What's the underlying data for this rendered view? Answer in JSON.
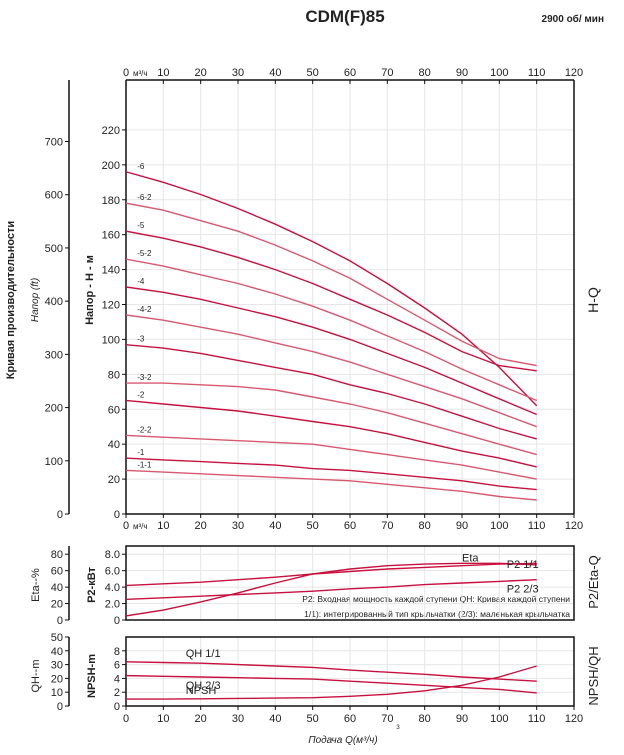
{
  "header": {
    "title": "CDM(F)85",
    "speed": "2900 об/ мин"
  },
  "colors": {
    "curve": "#c8103e",
    "curve_light": "#d9586f",
    "grid": "#e6e6e6",
    "axis": "#111111"
  },
  "labels": {
    "left_vertical": "Кривая производительности",
    "ft_axis": "Напор (ft)",
    "head_axis": "Напор - Н - м",
    "eta_axis": "Eta--%",
    "p2_axis": "P2-кВт",
    "qh_axis": "QH--m",
    "npsh_axis": "NPSH-m",
    "right_hq": "H-Q",
    "right_p2eta": "P2/Eta-Q",
    "right_npsh": "NPSH/QH",
    "unit_top": "м³/ч",
    "x_title": "Подача Q(м³/ч)",
    "x_title_unit_mark": "3",
    "note_line1": "P2: Входная мощность каждой ступени QH: Кривая каждой ступени",
    "note_line2": "1/1): интегрированный тип крыльчатки    (2/3): маленькая крыльчатка"
  },
  "chart_data": [
    {
      "id": "hq",
      "type": "line",
      "title": "H-Q",
      "xlabel": "м³/ч",
      "ylabel": "Напор - Н - м",
      "secondary_ylabel": "Напор (ft)",
      "xlim": [
        0,
        120
      ],
      "ylim": [
        0,
        240
      ],
      "x_ticks": [
        "0",
        "10",
        "20",
        "30",
        "40",
        "50",
        "60",
        "70",
        "80",
        "90",
        "100",
        "110",
        "120"
      ],
      "y_ticks": [
        "0",
        "20",
        "40",
        "60",
        "80",
        "100",
        "120",
        "140",
        "160",
        "180",
        "200",
        "220"
      ],
      "ft_ticks": [
        "0",
        "100",
        "200",
        "300",
        "400",
        "500",
        "600",
        "700"
      ],
      "grid": true,
      "series": [
        {
          "name": "-6",
          "x": [
            0,
            10,
            20,
            30,
            40,
            50,
            60,
            70,
            80,
            90,
            100,
            110
          ],
          "y": [
            196,
            190,
            183,
            175,
            166,
            156,
            145,
            132,
            118,
            103,
            84,
            62
          ]
        },
        {
          "name": "-6-2",
          "x": [
            0,
            10,
            20,
            30,
            40,
            50,
            60,
            70,
            80,
            90,
            100,
            110
          ],
          "y": [
            178,
            174,
            168,
            162,
            154,
            145,
            135,
            123,
            111,
            99,
            89,
            85
          ]
        },
        {
          "name": "-5",
          "x": [
            0,
            10,
            20,
            30,
            40,
            50,
            60,
            70,
            80,
            90,
            100,
            110
          ],
          "y": [
            162,
            158,
            153,
            147,
            140,
            132,
            123,
            114,
            104,
            93,
            85,
            82
          ]
        },
        {
          "name": "-5-2",
          "x": [
            0,
            10,
            20,
            30,
            40,
            50,
            60,
            70,
            80,
            90,
            100,
            110
          ],
          "y": [
            146,
            142,
            137,
            132,
            126,
            119,
            111,
            102,
            93,
            83,
            74,
            65
          ]
        },
        {
          "name": "-4",
          "x": [
            0,
            10,
            20,
            30,
            40,
            50,
            60,
            70,
            80,
            90,
            100,
            110
          ],
          "y": [
            130,
            127,
            123,
            118,
            113,
            107,
            100,
            92,
            84,
            75,
            66,
            57
          ]
        },
        {
          "name": "-4-2",
          "x": [
            0,
            10,
            20,
            30,
            40,
            50,
            60,
            70,
            80,
            90,
            100,
            110
          ],
          "y": [
            114,
            111,
            107,
            103,
            98,
            93,
            87,
            80,
            73,
            66,
            58,
            50
          ]
        },
        {
          "name": "-3",
          "x": [
            0,
            10,
            20,
            30,
            40,
            50,
            60,
            70,
            80,
            90,
            100,
            110
          ],
          "y": [
            97,
            95,
            92,
            88,
            84,
            80,
            74,
            69,
            63,
            56,
            49,
            43
          ]
        },
        {
          "name": "-3-2",
          "x": [
            0,
            10,
            20,
            30,
            40,
            50,
            60,
            70,
            80,
            90,
            100,
            110
          ],
          "y": [
            75,
            75,
            74,
            73,
            71,
            67,
            63,
            58,
            52,
            46,
            40,
            34
          ]
        },
        {
          "name": "-2",
          "x": [
            0,
            10,
            20,
            30,
            40,
            50,
            60,
            70,
            80,
            90,
            100,
            110
          ],
          "y": [
            65,
            63,
            61,
            59,
            56,
            53,
            50,
            46,
            41,
            36,
            32,
            27
          ]
        },
        {
          "name": "-2-2",
          "x": [
            0,
            10,
            20,
            30,
            40,
            50,
            60,
            70,
            80,
            90,
            100,
            110
          ],
          "y": [
            45,
            44,
            43,
            42,
            41,
            40,
            37,
            34,
            31,
            28,
            24,
            20
          ]
        },
        {
          "name": "-1",
          "x": [
            0,
            10,
            20,
            30,
            40,
            50,
            60,
            70,
            80,
            90,
            100,
            110
          ],
          "y": [
            32,
            31,
            30,
            29,
            28,
            26,
            25,
            23,
            21,
            19,
            16,
            14
          ]
        },
        {
          "name": "-1-1",
          "x": [
            0,
            10,
            20,
            30,
            40,
            50,
            60,
            70,
            80,
            90,
            100,
            110
          ],
          "y": [
            25,
            24,
            23,
            22,
            21,
            20,
            19,
            17,
            15,
            13,
            10,
            8
          ]
        }
      ]
    },
    {
      "id": "p2eta",
      "type": "line",
      "title": "P2/Eta-Q",
      "xlim": [
        0,
        120
      ],
      "eta_ylim": [
        0,
        90
      ],
      "eta_ticks": [
        "0",
        "20",
        "40",
        "60",
        "80"
      ],
      "p2_ylim": [
        0,
        9
      ],
      "p2_ticks": [
        "0",
        "2.0",
        "4.0",
        "6.0",
        "8.0"
      ],
      "grid": true,
      "series": [
        {
          "name": "Eta",
          "axis": "eta",
          "x": [
            0,
            10,
            20,
            30,
            40,
            50,
            60,
            70,
            80,
            90,
            100,
            110
          ],
          "y": [
            5,
            12,
            22,
            33,
            45,
            56,
            62,
            66,
            68,
            69,
            69,
            67
          ]
        },
        {
          "name": "P2 1/1",
          "axis": "p2",
          "x": [
            0,
            10,
            20,
            30,
            40,
            50,
            60,
            70,
            80,
            90,
            100,
            110
          ],
          "y": [
            4.2,
            4.4,
            4.6,
            4.9,
            5.2,
            5.6,
            5.9,
            6.2,
            6.4,
            6.6,
            6.8,
            6.9
          ]
        },
        {
          "name": "P2 2/3",
          "axis": "p2",
          "x": [
            0,
            10,
            20,
            30,
            40,
            50,
            60,
            70,
            80,
            90,
            100,
            110
          ],
          "y": [
            2.5,
            2.7,
            2.9,
            3.1,
            3.3,
            3.5,
            3.8,
            4.0,
            4.3,
            4.5,
            4.7,
            4.9
          ]
        }
      ]
    },
    {
      "id": "npsh",
      "type": "line",
      "title": "NPSH/QH",
      "xlabel": "Подача Q(м³/ч)",
      "x_ticks": [
        "0",
        "10",
        "20",
        "30",
        "40",
        "50",
        "60",
        "70",
        "80",
        "90",
        "100",
        "110",
        "120"
      ],
      "xlim": [
        0,
        120
      ],
      "qh_ylim": [
        0,
        50
      ],
      "qh_ticks": [
        "0",
        "10",
        "20",
        "30",
        "40",
        "50"
      ],
      "npsh_ylim": [
        0,
        10
      ],
      "npsh_ticks": [
        "0",
        "2",
        "4",
        "6",
        "8"
      ],
      "grid": true,
      "series": [
        {
          "name": "QH 1/1",
          "axis": "qh",
          "x": [
            0,
            10,
            20,
            30,
            40,
            50,
            60,
            70,
            80,
            90,
            100,
            110
          ],
          "y": [
            32,
            31.5,
            31,
            30,
            29,
            28,
            26,
            24.5,
            23,
            21,
            19.5,
            18
          ]
        },
        {
          "name": "QH 2/3",
          "axis": "qh",
          "x": [
            0,
            10,
            20,
            30,
            40,
            50,
            60,
            70,
            80,
            90,
            100,
            110
          ],
          "y": [
            22,
            21.5,
            21,
            20.5,
            20,
            19.5,
            18,
            16.5,
            15,
            13.5,
            12,
            9.5
          ]
        },
        {
          "name": "NPSH",
          "axis": "npsh",
          "x": [
            0,
            10,
            20,
            30,
            40,
            50,
            60,
            70,
            80,
            90,
            100,
            110
          ],
          "y": [
            1.0,
            1.0,
            1.05,
            1.1,
            1.15,
            1.2,
            1.4,
            1.7,
            2.2,
            3.0,
            4.2,
            5.8
          ]
        }
      ]
    }
  ]
}
